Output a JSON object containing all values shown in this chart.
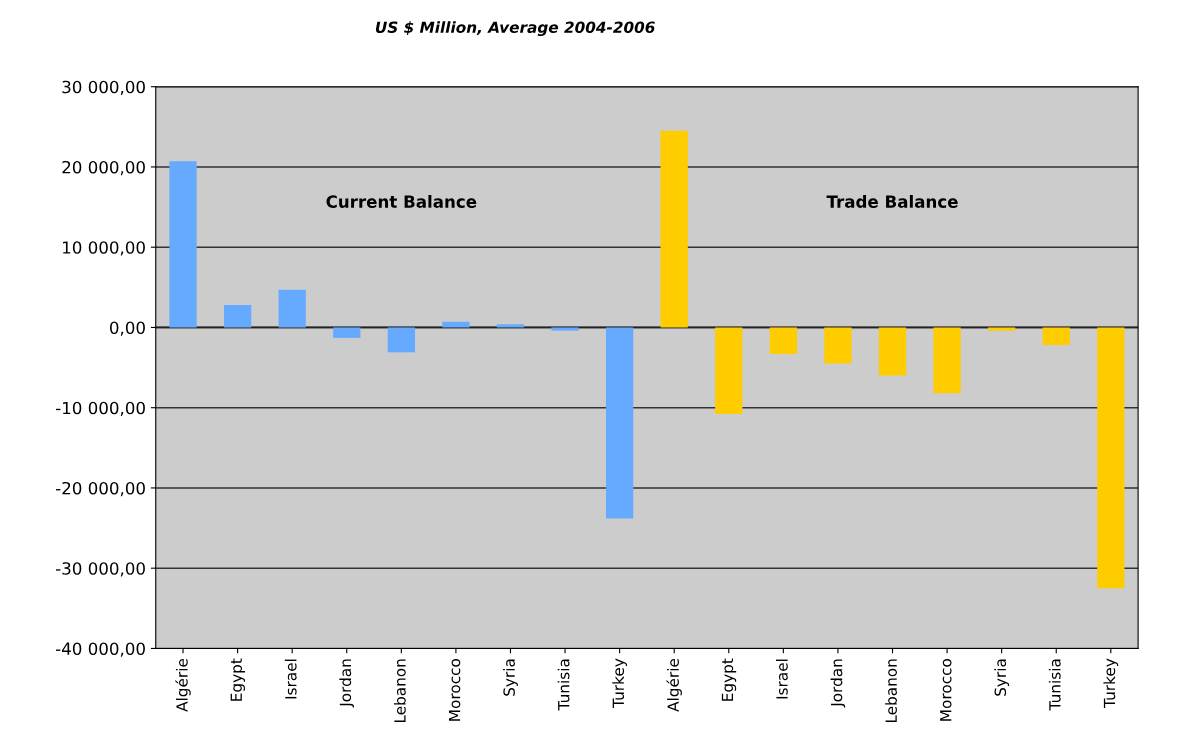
{
  "chart_data": {
    "type": "bar",
    "title": "US $ Million, Average 2004-2006",
    "categories": [
      "Algérie",
      "Egypt",
      "Israel",
      "Jordan",
      "Lebanon",
      "Morocco",
      "Syria",
      "Tunisia",
      "Turkey",
      "Algérie",
      "Egypt",
      "Israel",
      "Jordan",
      "Lebanon",
      "Morocco",
      "Syria",
      "Tunisia",
      "Turkey"
    ],
    "values": [
      20700,
      2800,
      4700,
      -1300,
      -3100,
      700,
      400,
      -400,
      -23800,
      24500,
      -10800,
      -3300,
      -4500,
      -6000,
      -8200,
      -400,
      -2200,
      -32500
    ],
    "colors": [
      "#66aaff",
      "#66aaff",
      "#66aaff",
      "#66aaff",
      "#66aaff",
      "#66aaff",
      "#66aaff",
      "#66aaff",
      "#66aaff",
      "#ffcc00",
      "#ffcc00",
      "#ffcc00",
      "#ffcc00",
      "#ffcc00",
      "#ffcc00",
      "#ffcc00",
      "#ffcc00",
      "#ffcc00"
    ],
    "annotations": [
      "Current Balance",
      "Trade Balance"
    ],
    "ylim": [
      -40000,
      30000
    ],
    "yticks": [
      {
        "value": -40000,
        "label": "-40 000,00"
      },
      {
        "value": -30000,
        "label": "-30 000,00"
      },
      {
        "value": -20000,
        "label": "-20 000,00"
      },
      {
        "value": -10000,
        "label": "-10 000,00"
      },
      {
        "value": 0,
        "label": "0,00"
      },
      {
        "value": 10000,
        "label": "10 000,00"
      },
      {
        "value": 20000,
        "label": "20 000,00"
      },
      {
        "value": 30000,
        "label": "30 000,00"
      }
    ],
    "grid": "y",
    "legend": false
  }
}
